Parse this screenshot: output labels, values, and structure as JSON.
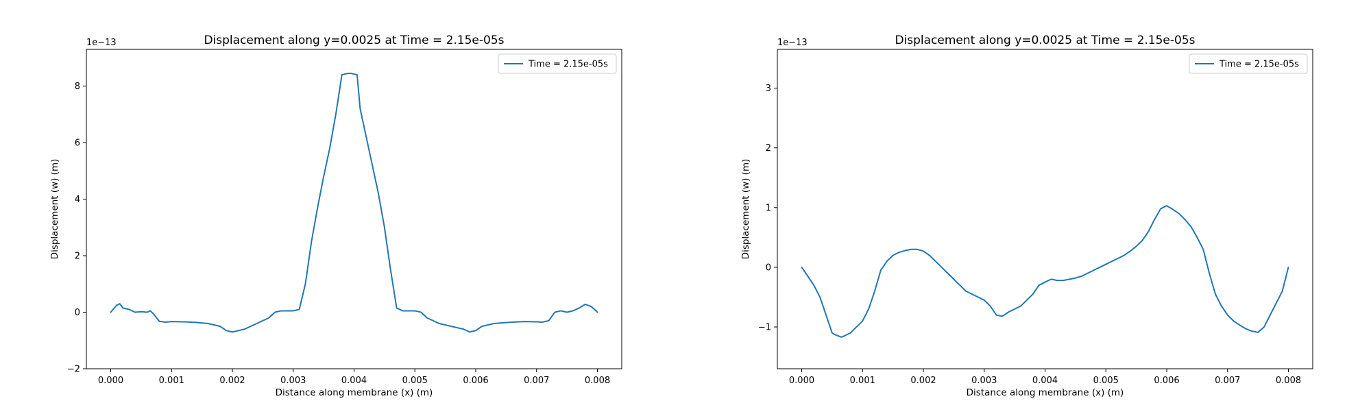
{
  "chart_data": [
    {
      "type": "line",
      "title": "Displacement along y=0.0025 at Time = 2.15e-05s",
      "xlabel": "Distance along membrane (x) (m)",
      "ylabel": "Displacement (w) (m)",
      "y_offset_label": "1e−13",
      "xlim": [
        -0.0004,
        0.0084
      ],
      "ylim": [
        -2,
        9.3
      ],
      "x_ticks": [
        0.0,
        0.001,
        0.002,
        0.003,
        0.004,
        0.005,
        0.006,
        0.007,
        0.008
      ],
      "x_tick_labels": [
        "0.000",
        "0.001",
        "0.002",
        "0.003",
        "0.004",
        "0.005",
        "0.006",
        "0.007",
        "0.008"
      ],
      "y_ticks": [
        -2,
        0,
        2,
        4,
        6,
        8
      ],
      "y_tick_labels": [
        "−2",
        "0",
        "2",
        "4",
        "6",
        "8"
      ],
      "grid": false,
      "legend_position": "top-right",
      "series": [
        {
          "name": "Time = 2.15e-05s",
          "color": "#1f77b4",
          "x": [
            0.0,
            0.0001,
            0.00015,
            0.0002,
            0.0003,
            0.0004,
            0.0005,
            0.0006,
            0.00065,
            0.0007,
            0.0008,
            0.0009,
            0.001,
            0.0012,
            0.0014,
            0.0016,
            0.0018,
            0.0019,
            0.002,
            0.0021,
            0.0022,
            0.0023,
            0.0024,
            0.0025,
            0.0026,
            0.0027,
            0.0028,
            0.0029,
            0.003,
            0.0031,
            0.0032,
            0.0033,
            0.0034,
            0.0035,
            0.0036,
            0.0037,
            0.0038,
            0.0039,
            0.00395,
            0.00405,
            0.0041,
            0.0042,
            0.0043,
            0.0044,
            0.0045,
            0.0046,
            0.0047,
            0.0048,
            0.0049,
            0.005,
            0.0051,
            0.0052,
            0.0053,
            0.0054,
            0.0055,
            0.0056,
            0.0057,
            0.0058,
            0.0059,
            0.006,
            0.0061,
            0.0062,
            0.0063,
            0.0064,
            0.0066,
            0.0068,
            0.007,
            0.0071,
            0.0072,
            0.0073,
            0.0074,
            0.0075,
            0.0076,
            0.0077,
            0.0078,
            0.0079,
            0.008
          ],
          "values": [
            0.0,
            0.25,
            0.3,
            0.15,
            0.1,
            0.0,
            0.02,
            0.0,
            0.05,
            -0.05,
            -0.32,
            -0.35,
            -0.33,
            -0.34,
            -0.36,
            -0.4,
            -0.5,
            -0.65,
            -0.7,
            -0.65,
            -0.6,
            -0.5,
            -0.4,
            -0.3,
            -0.2,
            0.0,
            0.05,
            0.05,
            0.05,
            0.1,
            1.0,
            2.5,
            3.7,
            4.8,
            5.8,
            7.0,
            8.4,
            8.45,
            8.45,
            8.4,
            7.2,
            6.2,
            5.2,
            4.2,
            3.0,
            1.5,
            0.15,
            0.05,
            0.05,
            0.05,
            0.0,
            -0.2,
            -0.3,
            -0.4,
            -0.45,
            -0.5,
            -0.55,
            -0.6,
            -0.7,
            -0.65,
            -0.5,
            -0.45,
            -0.4,
            -0.38,
            -0.35,
            -0.33,
            -0.34,
            -0.35,
            -0.3,
            0.0,
            0.05,
            0.0,
            0.05,
            0.15,
            0.28,
            0.2,
            0.0
          ]
        }
      ]
    },
    {
      "type": "line",
      "title": "Displacement along y=0.0025 at Time = 2.15e-05s",
      "xlabel": "Distance along membrane (x) (m)",
      "ylabel": "Displacement (w) (m)",
      "y_offset_label": "1e−13",
      "xlim": [
        -0.0004,
        0.0084
      ],
      "ylim": [
        -1.7,
        3.65
      ],
      "x_ticks": [
        0.0,
        0.001,
        0.002,
        0.003,
        0.004,
        0.005,
        0.006,
        0.007,
        0.008
      ],
      "x_tick_labels": [
        "0.000",
        "0.001",
        "0.002",
        "0.003",
        "0.004",
        "0.005",
        "0.006",
        "0.007",
        "0.008"
      ],
      "y_ticks": [
        -1,
        0,
        1,
        2,
        3
      ],
      "y_tick_labels": [
        "−1",
        "0",
        "1",
        "2",
        "3"
      ],
      "grid": false,
      "legend_position": "top-right",
      "series": [
        {
          "name": "Time = 2.15e-05s",
          "color": "#1f77b4",
          "x": [
            0.0,
            0.0001,
            0.0002,
            0.0003,
            0.0004,
            0.0005,
            0.00055,
            0.00065,
            0.0007,
            0.0008,
            0.0009,
            0.001,
            0.0011,
            0.0012,
            0.0013,
            0.0014,
            0.0015,
            0.0016,
            0.0017,
            0.0018,
            0.0019,
            0.002,
            0.0021,
            0.0022,
            0.0023,
            0.0024,
            0.0025,
            0.0026,
            0.0027,
            0.0028,
            0.0029,
            0.003,
            0.0031,
            0.0032,
            0.0033,
            0.0034,
            0.0035,
            0.0036,
            0.0037,
            0.0038,
            0.0039,
            0.004,
            0.0041,
            0.0042,
            0.0043,
            0.0044,
            0.0045,
            0.0046,
            0.0047,
            0.0048,
            0.0049,
            0.005,
            0.0051,
            0.0052,
            0.0053,
            0.0054,
            0.0055,
            0.0056,
            0.0057,
            0.0058,
            0.0059,
            0.006,
            0.0061,
            0.0062,
            0.0063,
            0.0064,
            0.0065,
            0.0066,
            0.0067,
            0.0068,
            0.0069,
            0.007,
            0.0071,
            0.0072,
            0.0073,
            0.0074,
            0.0075,
            0.0076,
            0.0077,
            0.0078,
            0.0079,
            0.008
          ],
          "values": [
            0.0,
            -0.15,
            -0.3,
            -0.5,
            -0.8,
            -1.1,
            -1.13,
            -1.17,
            -1.15,
            -1.1,
            -1.0,
            -0.9,
            -0.7,
            -0.4,
            -0.05,
            0.1,
            0.2,
            0.25,
            0.28,
            0.3,
            0.3,
            0.27,
            0.2,
            0.1,
            0.0,
            -0.1,
            -0.2,
            -0.3,
            -0.4,
            -0.45,
            -0.5,
            -0.55,
            -0.65,
            -0.8,
            -0.82,
            -0.75,
            -0.7,
            -0.65,
            -0.55,
            -0.45,
            -0.3,
            -0.25,
            -0.2,
            -0.22,
            -0.22,
            -0.2,
            -0.18,
            -0.15,
            -0.1,
            -0.05,
            0.0,
            0.05,
            0.1,
            0.15,
            0.2,
            0.27,
            0.35,
            0.45,
            0.6,
            0.8,
            0.98,
            1.03,
            0.97,
            0.9,
            0.8,
            0.68,
            0.5,
            0.3,
            -0.1,
            -0.45,
            -0.65,
            -0.8,
            -0.9,
            -0.97,
            -1.03,
            -1.07,
            -1.09,
            -1.0,
            -0.8,
            -0.6,
            -0.4,
            0.0
          ]
        }
      ]
    }
  ]
}
